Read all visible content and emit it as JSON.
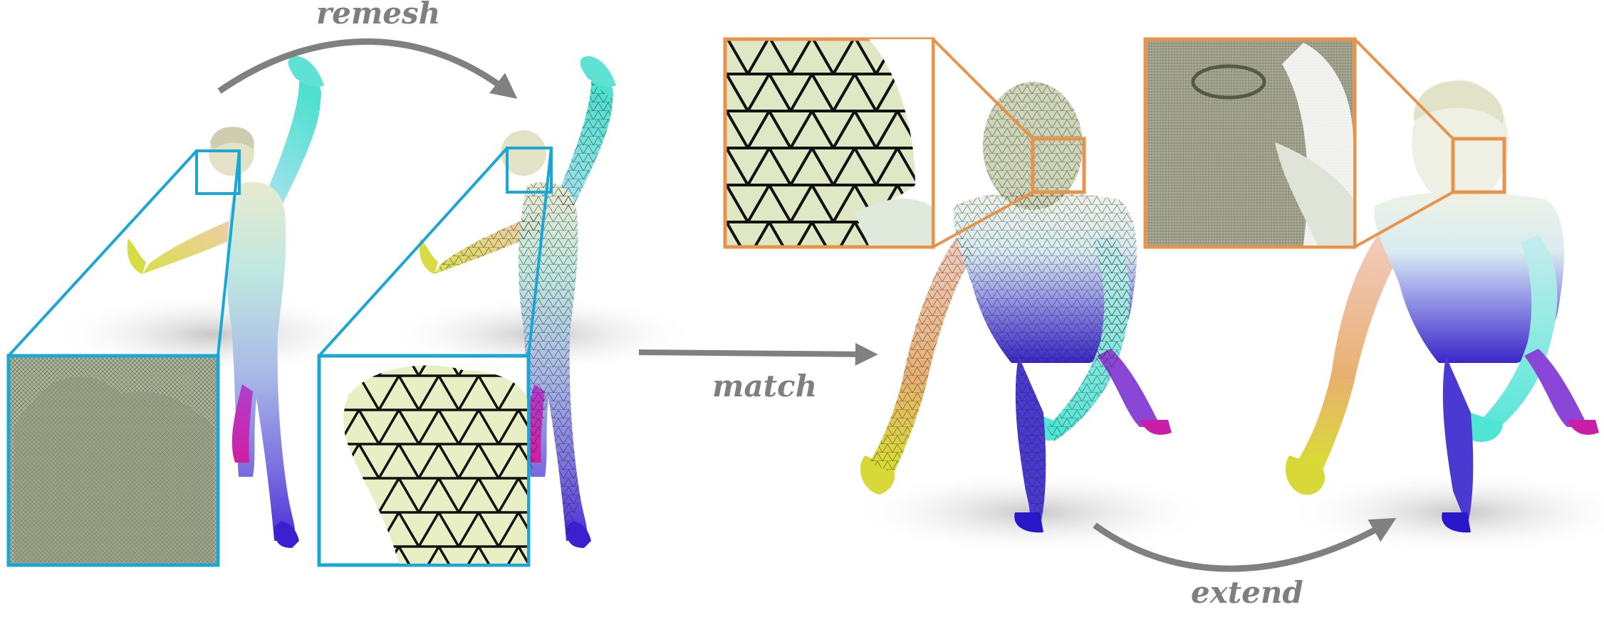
{
  "labels": {
    "remesh": "remesh",
    "match": "match",
    "extend": "extend"
  },
  "colors": {
    "arrow": "#808080",
    "inset_blue": "#1aa7d6",
    "inset_orange": "#e8924a",
    "label": "#7f7f7f"
  }
}
